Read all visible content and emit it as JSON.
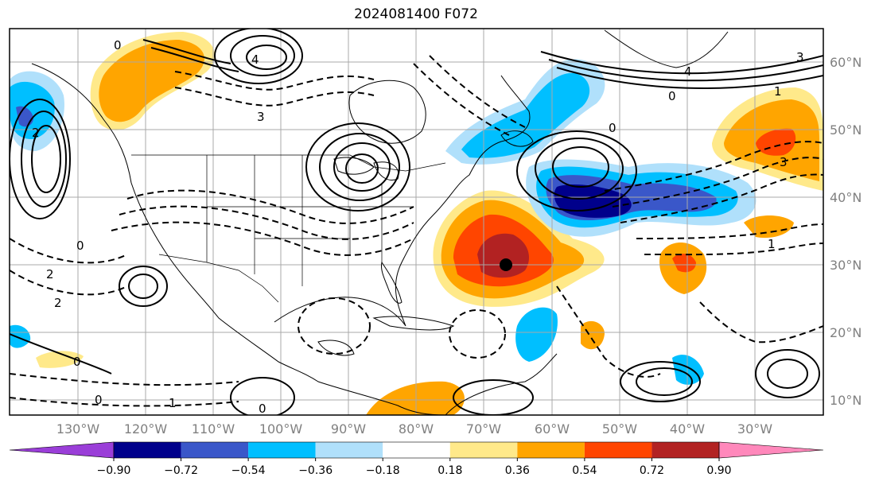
{
  "title": "2024081400 F072",
  "latitude_labels": [
    "60°N",
    "50°N",
    "40°N",
    "30°N",
    "20°N",
    "10°N"
  ],
  "longitude_labels": [
    "130°W",
    "120°W",
    "110°W",
    "100°W",
    "90°W",
    "80°W",
    "70°W",
    "60°W",
    "50°W",
    "40°W",
    "30°W"
  ],
  "colorbar": {
    "tick_labels": [
      "−0.90",
      "−0.72",
      "−0.54",
      "−0.36",
      "−0.18",
      "0.18",
      "0.36",
      "0.54",
      "0.72",
      "0.90"
    ],
    "colors": [
      "#9a3ed8",
      "#00008b",
      "#3a57c9",
      "#00bfff",
      "#b0e0fb",
      "#ffffff",
      "#ffe98a",
      "#ffa500",
      "#ff4500",
      "#b22222",
      "#ff88bb"
    ]
  },
  "contour_labels": [
    "0",
    "1",
    "2",
    "3",
    "4",
    "-1",
    "-2",
    "-3"
  ],
  "marker": {
    "type": "black dot",
    "lon": "66.8°W",
    "lat": "30°N"
  }
}
